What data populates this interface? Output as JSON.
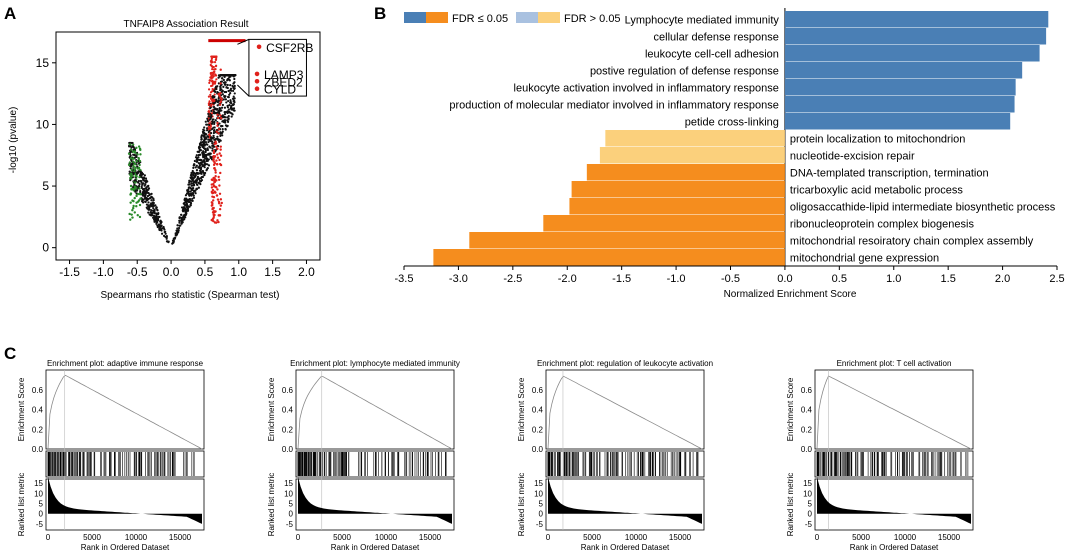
{
  "panels": {
    "a": "A",
    "b": "B",
    "c": "C"
  },
  "colors": {
    "fdr_sig_up": "#4a7fb5",
    "fdr_sig_down": "#f58d1e",
    "fdr_ns_up": "#a9c1e0",
    "fdr_ns_down": "#fbd07c",
    "volcano_pos": "#e0211b",
    "volcano_neg": "#2a8a2a",
    "gsea_line": "#8a8a8a"
  },
  "chart_data": [
    {
      "id": "panel-a",
      "type": "scatter",
      "title": "TNFAIP8 Association Result",
      "xlabel": "Spearmans rho statistic (Spearman test)",
      "ylabel": "-log10 (pvalue)",
      "xlim": [
        -1.7,
        2.2
      ],
      "ylim": [
        -1,
        17.5
      ],
      "xticks": [
        "-1.5",
        "-1.0",
        "-0.5",
        "0.0",
        "0.5",
        "1.0",
        "1.5",
        "2.0"
      ],
      "yticks": [
        "0",
        "5",
        "10",
        "15"
      ],
      "highlighted_genes": [
        {
          "label": "CSF2RB",
          "x": 1.3,
          "y": 16.3
        },
        {
          "label": "LAMP3",
          "x": 1.27,
          "y": 14.1
        },
        {
          "label": "ZBED2",
          "x": 1.27,
          "y": 13.5
        },
        {
          "label": "CYLD",
          "x": 1.27,
          "y": 12.9
        }
      ],
      "curve_description": "V-shaped distribution; positively correlated genes in red (rho > 0.6), negatively correlated genes in green (rho < -0.45)"
    },
    {
      "id": "panel-b",
      "type": "bar",
      "orientation": "horizontal",
      "xlabel": "Normalized Enrichment Score",
      "xlim": [
        -3.5,
        2.5
      ],
      "xticks": [
        "-3.5",
        "-3.0",
        "-2.5",
        "-2.0",
        "-1.5",
        "-1.0",
        "-0.5",
        "0.0",
        "0.5",
        "1.0",
        "1.5",
        "2.0",
        "2.5"
      ],
      "legend": {
        "label_sig": "FDR ≤ 0.05",
        "label_ns": "FDR > 0.05",
        "position": "top-left"
      },
      "categories": [
        "Lymphocyte mediated immunity",
        "cellular defense response",
        "leukocyte cell-cell adhesion",
        "postive regulation of defense response",
        "leukocyte activation involved in inflammatory response",
        "production of molecular mediator involved in inflammatory response",
        "petide cross-linking",
        "protein localization to mitochondrion",
        "nucleotide-excision repair",
        "DNA-templated transcription, termination",
        "tricarboxylic acid metabolic process",
        "oligosaccathide-lipid intermediate biosynthetic process",
        "ribonucleoprotein complex biogenesis",
        "mitochondrial resoiratory chain complex assembly",
        "mitochondrial gene expression"
      ],
      "values": [
        2.42,
        2.4,
        2.34,
        2.18,
        2.12,
        2.11,
        2.07,
        -1.65,
        -1.7,
        -1.82,
        -1.96,
        -1.98,
        -2.22,
        -2.9,
        -3.23
      ],
      "fdr_significant": [
        true,
        true,
        true,
        true,
        true,
        true,
        true,
        false,
        false,
        true,
        true,
        true,
        true,
        true,
        true
      ]
    },
    {
      "id": "panel-c",
      "type": "line",
      "plots": [
        {
          "title": "Enrichment plot: adaptive immune response",
          "peak_rank": 1900,
          "peak_es": 0.75
        },
        {
          "title": "Enrichment plot: lymphocyte mediated immunity",
          "peak_rank": 2700,
          "peak_es": 0.74
        },
        {
          "title": "Enrichment plot: regulation of leukocyte activation",
          "peak_rank": 1700,
          "peak_es": 0.74
        },
        {
          "title": "Enrichment plot: T cell activation",
          "peak_rank": 1300,
          "peak_es": 0.74
        }
      ],
      "ylabel_es": "Enrichment Score",
      "ylabel_metric": "Ranked list metric",
      "xlabel": "Rank in Ordered Dataset",
      "es_ticks": [
        "0.6",
        "0.4",
        "0.2",
        "0.0"
      ],
      "metric_ticks": [
        "15",
        "10",
        "5",
        "0",
        "-5"
      ],
      "rank_ticks": [
        "0",
        "5000",
        "10000",
        "15000"
      ],
      "rank_max": 17500,
      "es_range": [
        0,
        0.8
      ],
      "metric_range": [
        -8,
        17
      ]
    }
  ]
}
